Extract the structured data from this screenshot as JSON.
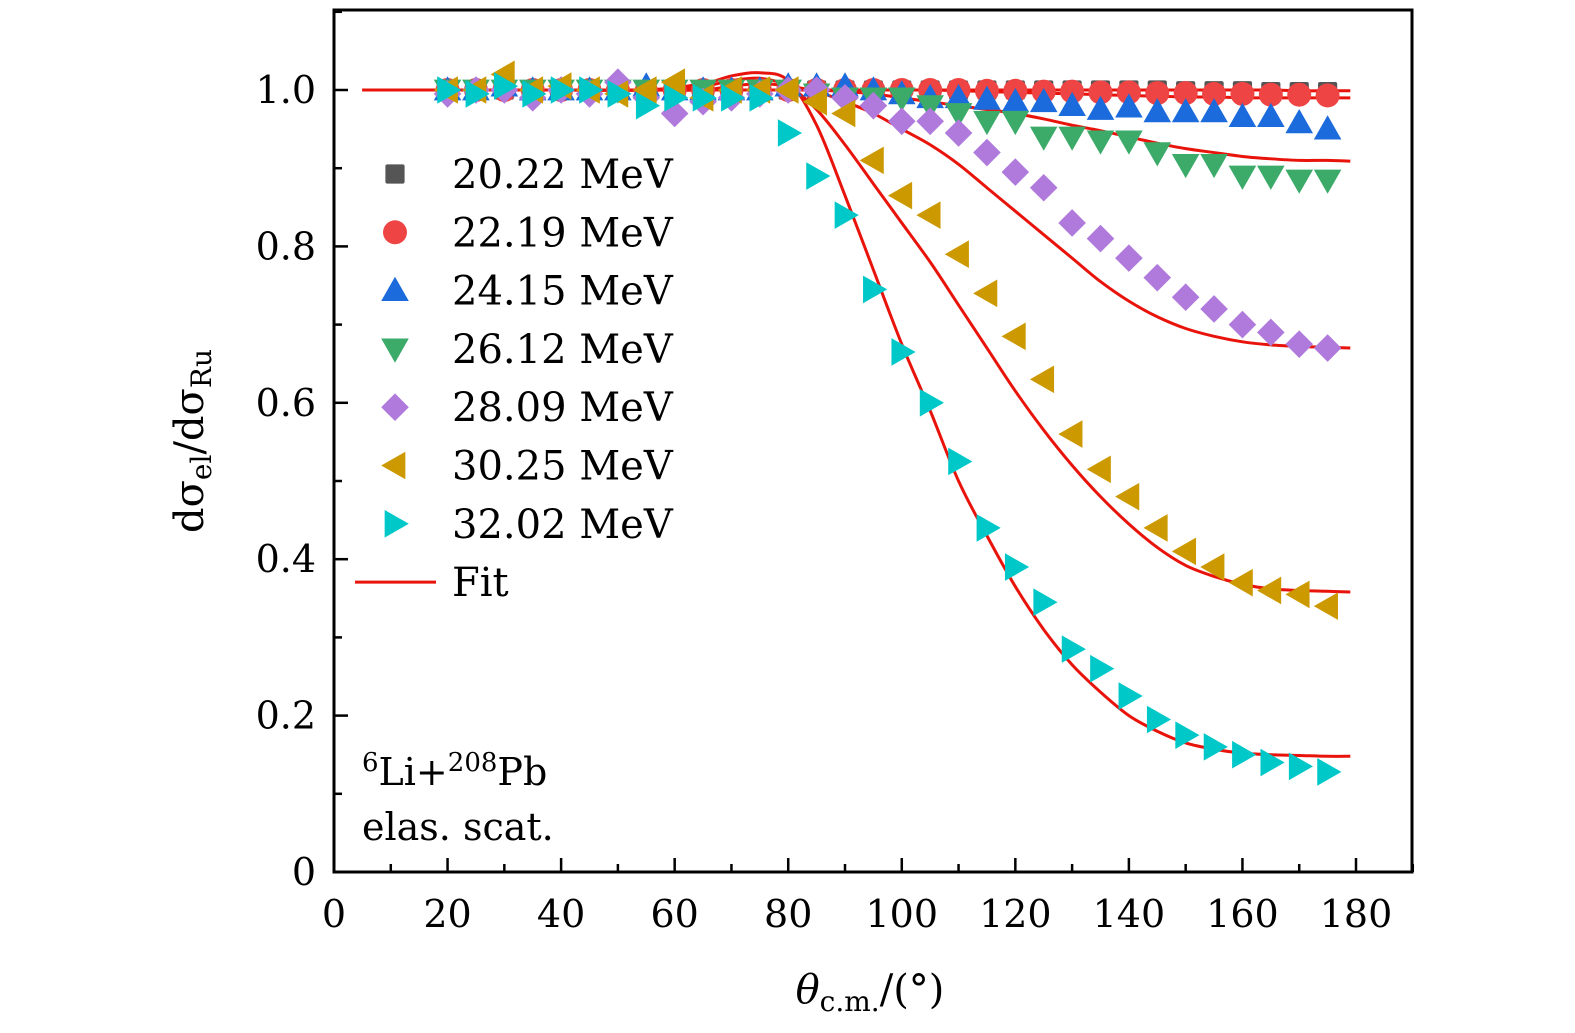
{
  "chart_data": {
    "type": "scatter",
    "title": "",
    "xlabel": "θc.m./(°)",
    "xlabel_parts": {
      "main": "θ",
      "sub": "c.m.",
      "rest": "/(°)"
    },
    "ylabel": "dσel/dσRu",
    "ylabel_parts": {
      "a": "dσ",
      "sub1": "el",
      "b": "/dσ",
      "sub2": "Ru"
    },
    "xlim": [
      0,
      190
    ],
    "ylim": [
      0,
      1.1
    ],
    "xticks": [
      0,
      20,
      40,
      60,
      80,
      100,
      120,
      140,
      160,
      180
    ],
    "yticks": [
      0,
      0.2,
      0.4,
      0.6,
      0.8,
      1.0
    ],
    "ytick_labels": [
      "0",
      "0.2",
      "0.4",
      "0.6",
      "0.8",
      "1.0"
    ],
    "grid": false,
    "legend_position": "upper-left",
    "annotation": {
      "line1_sup1": "6",
      "line1_a": "Li+",
      "line1_sup2": "208",
      "line1_b": "Pb",
      "line2": "elas. scat."
    },
    "x": [
      20,
      25,
      30,
      35,
      40,
      45,
      50,
      55,
      60,
      65,
      70,
      75,
      80,
      85,
      90,
      95,
      100,
      105,
      110,
      115,
      120,
      125,
      130,
      135,
      140,
      145,
      150,
      155,
      160,
      165,
      170,
      175
    ],
    "series": [
      {
        "name": "20.22 MeV",
        "marker": "square",
        "color": "#555555",
        "values": [
          1.0,
          1.0,
          1.0,
          1.0,
          1.0,
          1.0,
          1.0,
          1.0,
          1.0,
          1.0,
          1.0,
          1.0,
          1.0,
          1.0,
          1.0,
          1.0,
          1.0,
          1.0,
          1.0,
          1.0,
          1.0,
          1.0,
          1.0,
          1.0,
          1.0,
          1.0,
          0.999,
          0.999,
          0.999,
          0.998,
          0.998,
          0.998
        ]
      },
      {
        "name": "22.19 MeV",
        "marker": "circle",
        "color": "#EF4444",
        "values": [
          1.0,
          1.0,
          1.0,
          1.0,
          1.0,
          1.0,
          1.0,
          0.998,
          1.0,
          1.0,
          1.0,
          1.0,
          1.0,
          1.0,
          1.0,
          1.0,
          1.0,
          1.0,
          1.0,
          0.999,
          0.999,
          0.998,
          0.998,
          0.997,
          0.997,
          0.996,
          0.996,
          0.995,
          0.995,
          0.994,
          0.994,
          0.993
        ]
      },
      {
        "name": "24.15 MeV",
        "marker": "triangle-up",
        "color": "#1C6BDC",
        "values": [
          1.0,
          1.0,
          1.005,
          1.0,
          1.0,
          1.0,
          1.0,
          1.005,
          1.0,
          1.0,
          1.0,
          1.0,
          1.005,
          1.005,
          1.005,
          1.0,
          0.995,
          0.99,
          0.99,
          0.988,
          0.985,
          0.985,
          0.98,
          0.975,
          0.978,
          0.972,
          0.972,
          0.972,
          0.966,
          0.966,
          0.958,
          0.95
        ]
      },
      {
        "name": "26.12 MeV",
        "marker": "triangle-down",
        "color": "#3CAB6A",
        "values": [
          1.0,
          1.0,
          1.0,
          1.0,
          1.0,
          1.0,
          1.0,
          1.0,
          1.0,
          1.0,
          1.0,
          1.0,
          1.0,
          0.995,
          0.99,
          0.99,
          0.99,
          0.98,
          0.97,
          0.96,
          0.96,
          0.94,
          0.94,
          0.935,
          0.935,
          0.92,
          0.905,
          0.905,
          0.89,
          0.89,
          0.885,
          0.885
        ]
      },
      {
        "name": "28.09 MeV",
        "marker": "diamond",
        "color": "#B07ADC",
        "values": [
          0.995,
          1.0,
          1.0,
          0.99,
          1.0,
          0.995,
          1.01,
          0.99,
          0.97,
          0.985,
          0.99,
          0.995,
          1.0,
          1.0,
          0.99,
          0.98,
          0.96,
          0.96,
          0.945,
          0.92,
          0.895,
          0.875,
          0.83,
          0.81,
          0.785,
          0.76,
          0.735,
          0.72,
          0.7,
          0.69,
          0.675,
          0.67
        ]
      },
      {
        "name": "30.25 MeV",
        "marker": "triangle-left",
        "color": "#CC9900",
        "values": [
          1.0,
          1.0,
          1.02,
          1.0,
          1.005,
          1.0,
          0.995,
          1.0,
          1.01,
          0.99,
          1.0,
          1.0,
          1.0,
          0.985,
          0.97,
          0.91,
          0.865,
          0.84,
          0.79,
          0.74,
          0.685,
          0.63,
          0.56,
          0.515,
          0.48,
          0.44,
          0.41,
          0.39,
          0.37,
          0.36,
          0.355,
          0.34
        ]
      },
      {
        "name": "32.02 MeV",
        "marker": "triangle-right",
        "color": "#00C8C8",
        "values": [
          1.0,
          0.995,
          1.005,
          0.995,
          1.0,
          1.0,
          0.995,
          0.98,
          0.99,
          0.99,
          0.99,
          0.99,
          0.945,
          0.89,
          0.84,
          0.745,
          0.665,
          0.6,
          0.525,
          0.44,
          0.39,
          0.345,
          0.285,
          0.26,
          0.225,
          0.195,
          0.175,
          0.16,
          0.15,
          0.14,
          0.135,
          0.128
        ]
      }
    ],
    "fit": {
      "name": "Fit",
      "color": "#E8140C",
      "x": [
        5,
        20,
        40,
        55,
        65,
        70,
        75,
        80,
        85,
        90,
        95,
        100,
        105,
        110,
        115,
        120,
        125,
        130,
        135,
        140,
        145,
        150,
        155,
        160,
        165,
        170,
        175,
        179
      ],
      "curves": [
        {
          "for": "20.22 MeV",
          "values": [
            1.0,
            1.0,
            1.0,
            1.0,
            1.0,
            1.0,
            1.0,
            1.0,
            1.0,
            1.0,
            1.0,
            1.0,
            1.0,
            1.0,
            1.0,
            1.0,
            1.0,
            1.0,
            1.0,
            1.0,
            1.0,
            1.0,
            1.0,
            1.0,
            1.0,
            0.999,
            0.999,
            0.999
          ]
        },
        {
          "for": "22.19 MeV",
          "values": [
            1.0,
            1.0,
            1.0,
            1.0,
            1.0,
            1.0,
            1.0,
            1.0,
            1.0,
            1.0,
            1.0,
            1.0,
            1.0,
            0.999,
            0.998,
            0.997,
            0.996,
            0.995,
            0.994,
            0.993,
            0.992,
            0.991,
            0.991,
            0.99,
            0.99,
            0.99,
            0.99,
            0.99
          ]
        },
        {
          "for": "26.12 MeV",
          "values": [
            1.0,
            1.0,
            1.0,
            1.0,
            1.0,
            1.0,
            1.0,
            1.0,
            1.0,
            0.998,
            0.995,
            0.99,
            0.985,
            0.98,
            0.975,
            0.97,
            0.963,
            0.955,
            0.948,
            0.94,
            0.932,
            0.925,
            0.92,
            0.915,
            0.912,
            0.91,
            0.91,
            0.909
          ]
        },
        {
          "for": "28.09 MeV",
          "values": [
            1.0,
            1.0,
            1.0,
            1.0,
            1.0,
            1.005,
            1.008,
            1.005,
            0.998,
            0.985,
            0.97,
            0.95,
            0.93,
            0.905,
            0.875,
            0.845,
            0.815,
            0.785,
            0.755,
            0.73,
            0.71,
            0.695,
            0.685,
            0.678,
            0.674,
            0.672,
            0.671,
            0.67
          ]
        },
        {
          "for": "30.25 MeV",
          "values": [
            1.0,
            1.0,
            1.0,
            1.0,
            1.005,
            1.012,
            1.015,
            1.005,
            0.975,
            0.93,
            0.88,
            0.83,
            0.78,
            0.725,
            0.67,
            0.615,
            0.565,
            0.52,
            0.48,
            0.445,
            0.415,
            0.392,
            0.378,
            0.368,
            0.362,
            0.36,
            0.359,
            0.358
          ]
        },
        {
          "for": "32.02 MeV",
          "values": [
            1.0,
            1.0,
            1.0,
            1.0,
            1.008,
            1.018,
            1.022,
            1.012,
            0.955,
            0.865,
            0.77,
            0.675,
            0.59,
            0.5,
            0.43,
            0.365,
            0.31,
            0.265,
            0.23,
            0.2,
            0.18,
            0.165,
            0.157,
            0.152,
            0.15,
            0.149,
            0.148,
            0.148
          ]
        }
      ]
    }
  }
}
